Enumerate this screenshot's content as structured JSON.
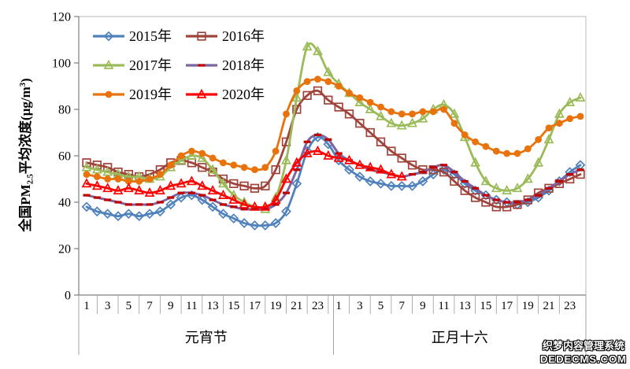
{
  "watermark": {
    "line1": "织梦内容管理系统",
    "line2": "DEDECMS.COM"
  },
  "chart_data": {
    "type": "line",
    "title": "",
    "ylabel_parts": {
      "prefix": "全国PM",
      "sub": "2.5",
      "mid": "平均浓度(µg/m",
      "sup": "3",
      "suffix": ")"
    },
    "y_axis": {
      "min": 0,
      "max": 120,
      "step": 20,
      "ticks": [
        0,
        20,
        40,
        60,
        80,
        100,
        120
      ]
    },
    "x_axis": {
      "hours_per_day": 24,
      "hour_labels": [
        "1",
        "3",
        "5",
        "7",
        "9",
        "11",
        "13",
        "15",
        "17",
        "19",
        "21",
        "23"
      ],
      "day_labels": [
        "元宵节",
        "正月十六"
      ]
    },
    "legend_position": "top-left",
    "grid": false,
    "series": [
      {
        "name": "2015年",
        "color": "#4f81bd",
        "marker": "diamond",
        "marker_color": "#4f81bd",
        "values": [
          38,
          36,
          35,
          34,
          35,
          34,
          35,
          36,
          39,
          42,
          43,
          41,
          38,
          35,
          33,
          31,
          30,
          30,
          31,
          36,
          48,
          62,
          68,
          65,
          58,
          54,
          51,
          49,
          48,
          47,
          47,
          47,
          49,
          52,
          54,
          52,
          48,
          45,
          43,
          41,
          40,
          39,
          40,
          42,
          45,
          49,
          53,
          56
        ]
      },
      {
        "name": "2016年",
        "color": "#a0433a",
        "marker": "square",
        "marker_color": "#a0433a",
        "values": [
          57,
          56,
          55,
          53,
          52,
          51,
          52,
          54,
          57,
          58,
          57,
          55,
          53,
          50,
          48,
          47,
          46,
          47,
          54,
          66,
          80,
          86,
          88,
          84,
          81,
          78,
          74,
          70,
          66,
          62,
          59,
          56,
          54,
          54,
          53,
          49,
          45,
          42,
          40,
          38,
          38,
          39,
          41,
          44,
          46,
          48,
          50,
          52
        ]
      },
      {
        "name": "2017年",
        "color": "#9bbb59",
        "marker": "triangle",
        "marker_color": "#9bbb59",
        "values": [
          55,
          54,
          53,
          52,
          51,
          51,
          50,
          51,
          55,
          58,
          60,
          59,
          54,
          48,
          43,
          40,
          38,
          37,
          42,
          58,
          85,
          107,
          105,
          96,
          91,
          87,
          83,
          80,
          77,
          74,
          73,
          74,
          76,
          80,
          82,
          78,
          68,
          57,
          49,
          46,
          45,
          46,
          50,
          57,
          67,
          78,
          83,
          85
        ]
      },
      {
        "name": "2018年",
        "color": "#8064a2",
        "marker": "dash",
        "marker_color": "#c00000",
        "values": [
          43,
          42,
          41,
          40,
          39,
          39,
          39,
          40,
          42,
          44,
          44,
          43,
          41,
          39,
          38,
          37,
          37,
          37,
          39,
          44,
          54,
          66,
          69,
          67,
          61,
          58,
          56,
          54,
          53,
          52,
          51,
          52,
          53,
          55,
          56,
          53,
          49,
          46,
          43,
          41,
          40,
          40,
          41,
          43,
          46,
          49,
          52,
          54
        ]
      },
      {
        "name": "2019年",
        "color": "#e8720c",
        "marker": "circle",
        "marker_color": "#e8720c",
        "values": [
          52,
          51,
          50,
          50,
          49,
          49,
          50,
          52,
          56,
          60,
          62,
          61,
          59,
          57,
          56,
          55,
          54,
          55,
          62,
          78,
          88,
          92,
          93,
          92,
          90,
          87,
          85,
          83,
          81,
          79,
          78,
          78,
          79,
          79,
          80,
          74,
          69,
          66,
          64,
          62,
          61,
          61,
          63,
          67,
          72,
          74,
          76,
          77
        ]
      },
      {
        "name": "2020年",
        "color": "#fe0000",
        "marker": "triangle",
        "marker_color": "#fe0000",
        "values": [
          48,
          47,
          46,
          45,
          46,
          45,
          44,
          45,
          47,
          48,
          49,
          47,
          45,
          43,
          41,
          39,
          38,
          38,
          41,
          50,
          57,
          61,
          62,
          60,
          59,
          58,
          56,
          55,
          54,
          52,
          51
        ]
      }
    ]
  }
}
